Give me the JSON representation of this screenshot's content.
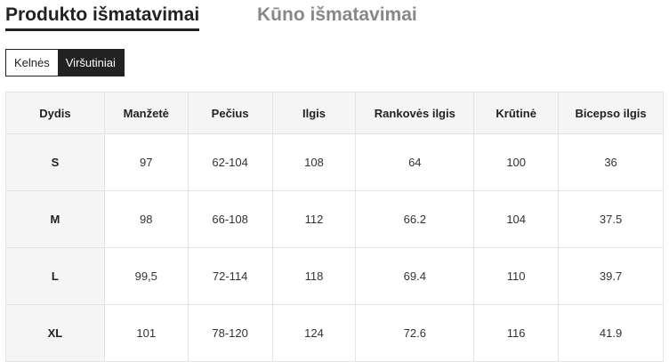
{
  "tabs": [
    {
      "label": "Produkto išmatavimai",
      "active": true
    },
    {
      "label": "Kūno išmatavimai",
      "active": false
    }
  ],
  "category_toggle": [
    {
      "label": "Kelnės",
      "active": false
    },
    {
      "label": "Viršutiniai",
      "active": true
    }
  ],
  "table": {
    "headers": [
      "Dydis",
      "Manžetė",
      "Pečius",
      "Ilgis",
      "Rankovės ilgis",
      "Krūtinė",
      "Bicepso ilgis"
    ],
    "rows": [
      [
        "S",
        "97",
        "62-104",
        "108",
        "64",
        "100",
        "36"
      ],
      [
        "M",
        "98",
        "66-108",
        "112",
        "66.2",
        "104",
        "37.5"
      ],
      [
        "L",
        "99,5",
        "72-114",
        "118",
        "69.4",
        "110",
        "39.7"
      ],
      [
        "XL",
        "101",
        "78-120",
        "124",
        "72.6",
        "116",
        "41.9"
      ]
    ]
  }
}
